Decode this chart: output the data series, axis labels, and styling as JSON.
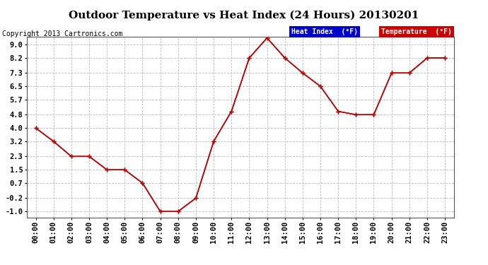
{
  "title": "Outdoor Temperature vs Heat Index (24 Hours) 20130201",
  "copyright": "Copyright 2013 Cartronics.com",
  "x_labels": [
    "00:00",
    "01:00",
    "02:00",
    "03:00",
    "04:00",
    "05:00",
    "06:00",
    "07:00",
    "08:00",
    "09:00",
    "10:00",
    "11:00",
    "12:00",
    "13:00",
    "14:00",
    "15:00",
    "16:00",
    "17:00",
    "18:00",
    "19:00",
    "20:00",
    "21:00",
    "22:00",
    "23:00"
  ],
  "y_ticks": [
    -1.0,
    -0.2,
    0.7,
    1.5,
    2.3,
    3.2,
    4.0,
    4.8,
    5.7,
    6.5,
    7.3,
    8.2,
    9.0
  ],
  "ylim": [
    -1.35,
    9.45
  ],
  "temperature": [
    4.0,
    3.2,
    2.3,
    2.3,
    1.5,
    1.5,
    0.7,
    -1.0,
    -1.0,
    -0.2,
    3.2,
    5.0,
    8.2,
    9.4,
    8.2,
    7.3,
    6.5,
    5.0,
    4.8,
    4.8,
    7.3,
    7.3,
    8.2,
    8.2
  ],
  "heat_index": [
    4.0,
    3.2,
    2.3,
    2.3,
    1.5,
    1.5,
    0.7,
    -1.0,
    -1.0,
    -0.2,
    3.2,
    5.0,
    8.2,
    9.4,
    8.2,
    7.3,
    6.5,
    5.0,
    4.8,
    4.8,
    7.3,
    7.3,
    8.2,
    8.2
  ],
  "temp_color": "#cc0000",
  "heat_index_color": "#000000",
  "background_color": "#ffffff",
  "grid_color": "#bbbbbb",
  "title_fontsize": 11,
  "copyright_fontsize": 7,
  "tick_fontsize": 7.5,
  "legend_heat_bg": "#0000cc",
  "legend_temp_bg": "#cc0000",
  "legend_text_color": "#ffffff"
}
